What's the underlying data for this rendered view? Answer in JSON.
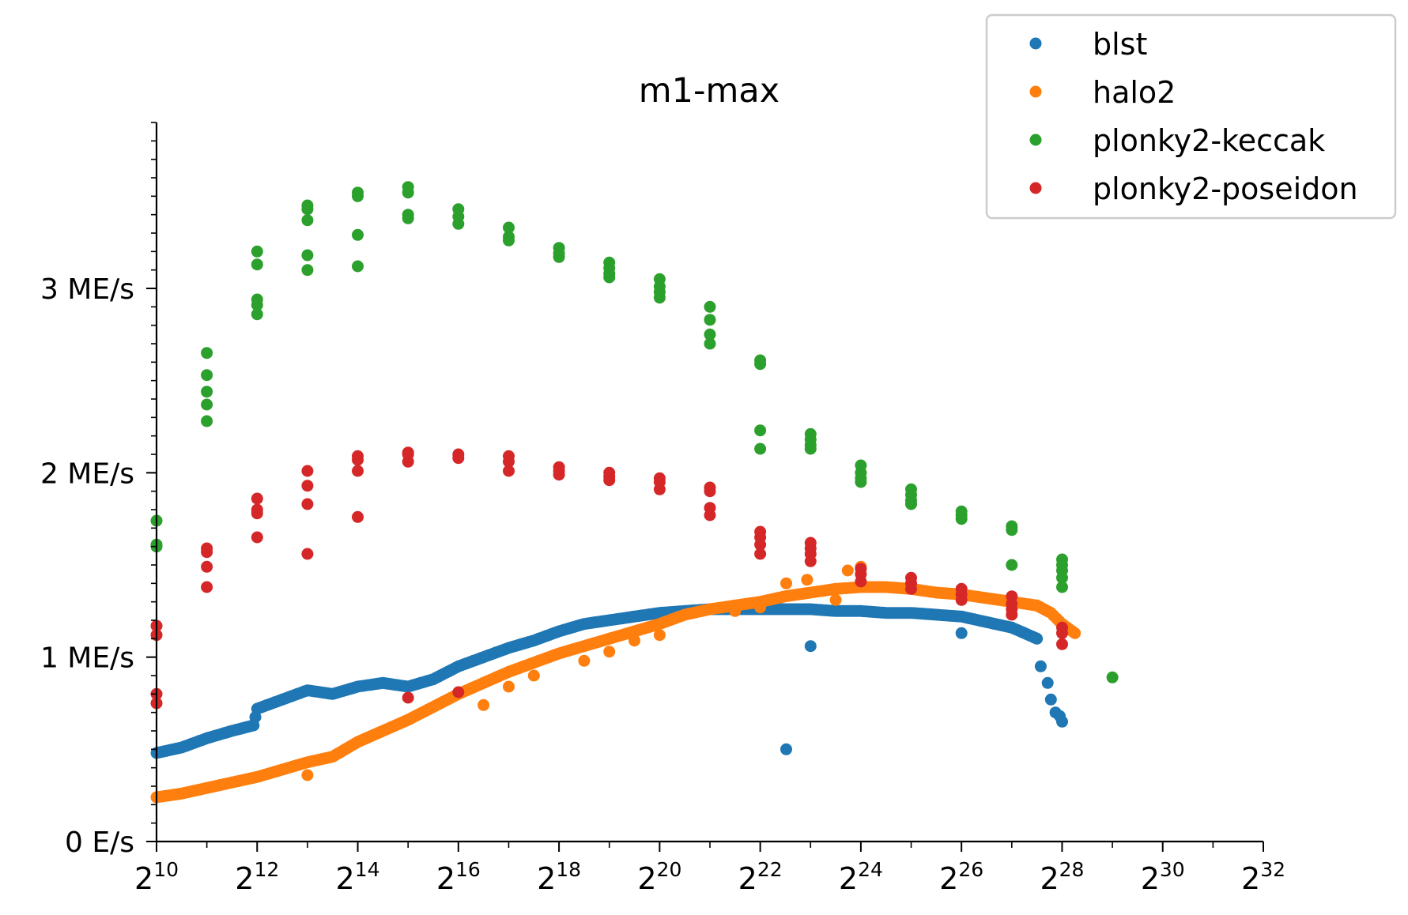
{
  "chart_data": {
    "type": "scatter",
    "title": "m1-max",
    "xlabel": "",
    "ylabel": "",
    "x_scale": "log2",
    "xlim": [
      1024,
      4294967296
    ],
    "ylim": [
      0,
      3900000
    ],
    "x_ticks": [
      {
        "value": 1024,
        "base": "2",
        "exp": "10"
      },
      {
        "value": 4096,
        "base": "2",
        "exp": "12"
      },
      {
        "value": 16384,
        "base": "2",
        "exp": "14"
      },
      {
        "value": 65536,
        "base": "2",
        "exp": "16"
      },
      {
        "value": 262144,
        "base": "2",
        "exp": "18"
      },
      {
        "value": 1048576,
        "base": "2",
        "exp": "20"
      },
      {
        "value": 4194304,
        "base": "2",
        "exp": "22"
      },
      {
        "value": 16777216,
        "base": "2",
        "exp": "24"
      },
      {
        "value": 67108864,
        "base": "2",
        "exp": "26"
      },
      {
        "value": 268435456,
        "base": "2",
        "exp": "28"
      },
      {
        "value": 1073741824,
        "base": "2",
        "exp": "30"
      },
      {
        "value": 4294967296,
        "base": "2",
        "exp": "32"
      }
    ],
    "y_ticks": [
      {
        "value": 0,
        "label": "0 E/s"
      },
      {
        "value": 1000000,
        "label": "1 ME/s"
      },
      {
        "value": 2000000,
        "label": "2 ME/s"
      },
      {
        "value": 3000000,
        "label": "3 ME/s"
      }
    ],
    "grid": false,
    "legend_position": "top-right",
    "series": [
      {
        "name": "blst",
        "color": "#1f77b4",
        "curve": [
          [
            1024,
            480000
          ],
          [
            1448,
            510000
          ],
          [
            2048,
            560000
          ],
          [
            2896,
            600000
          ],
          [
            3900,
            630000
          ],
          [
            4096,
            720000
          ],
          [
            5793,
            770000
          ],
          [
            8192,
            820000
          ],
          [
            11585,
            800000
          ],
          [
            16384,
            840000
          ],
          [
            23170,
            860000
          ],
          [
            32768,
            840000
          ],
          [
            46341,
            880000
          ],
          [
            65536,
            950000
          ],
          [
            92682,
            1000000
          ],
          [
            131072,
            1050000
          ],
          [
            185364,
            1090000
          ],
          [
            262144,
            1140000
          ],
          [
            370728,
            1180000
          ],
          [
            524288,
            1200000
          ],
          [
            741455,
            1220000
          ],
          [
            1048576,
            1240000
          ],
          [
            1482910,
            1250000
          ],
          [
            2097152,
            1260000
          ],
          [
            2965821,
            1260000
          ],
          [
            4194304,
            1260000
          ],
          [
            5931642,
            1260000
          ],
          [
            8388608,
            1260000
          ],
          [
            11863283,
            1250000
          ],
          [
            16777216,
            1250000
          ],
          [
            23726566,
            1240000
          ],
          [
            33554432,
            1240000
          ],
          [
            47453133,
            1230000
          ],
          [
            67108864,
            1220000
          ],
          [
            94906266,
            1190000
          ],
          [
            134217728,
            1160000
          ],
          [
            160000000,
            1130000
          ],
          [
            189812531,
            1100000
          ]
        ],
        "points": [
          [
            6000000,
            500000
          ],
          [
            8388608,
            1060000
          ],
          [
            67108864,
            1130000
          ],
          [
            200000000,
            950000
          ],
          [
            220000000,
            860000
          ],
          [
            230000000,
            770000
          ],
          [
            245000000,
            700000
          ],
          [
            260000000,
            680000
          ],
          [
            268435456,
            650000
          ]
        ]
      },
      {
        "name": "halo2",
        "color": "#ff7f0e",
        "curve": [
          [
            1024,
            240000
          ],
          [
            1448,
            260000
          ],
          [
            2048,
            290000
          ],
          [
            2896,
            320000
          ],
          [
            4096,
            350000
          ],
          [
            5793,
            390000
          ],
          [
            8192,
            430000
          ],
          [
            11585,
            460000
          ],
          [
            16384,
            540000
          ],
          [
            23170,
            600000
          ],
          [
            32768,
            660000
          ],
          [
            46341,
            730000
          ],
          [
            65536,
            800000
          ],
          [
            92682,
            860000
          ],
          [
            131072,
            920000
          ],
          [
            185364,
            970000
          ],
          [
            262144,
            1020000
          ],
          [
            370728,
            1060000
          ],
          [
            524288,
            1100000
          ],
          [
            741455,
            1140000
          ],
          [
            1048576,
            1180000
          ],
          [
            1482910,
            1230000
          ],
          [
            2097152,
            1260000
          ],
          [
            2965821,
            1280000
          ],
          [
            4194304,
            1300000
          ],
          [
            5931642,
            1330000
          ],
          [
            8388608,
            1350000
          ],
          [
            11863283,
            1370000
          ],
          [
            16777216,
            1380000
          ],
          [
            23726566,
            1380000
          ],
          [
            33554432,
            1370000
          ],
          [
            47453133,
            1350000
          ],
          [
            67108864,
            1340000
          ],
          [
            94906266,
            1320000
          ],
          [
            134217728,
            1300000
          ],
          [
            189812531,
            1280000
          ],
          [
            230000000,
            1240000
          ],
          [
            268435456,
            1180000
          ],
          [
            320000000,
            1130000
          ]
        ],
        "points": [
          [
            8192,
            360000
          ],
          [
            6000000,
            1400000
          ],
          [
            8000000,
            1420000
          ],
          [
            14000000,
            1470000
          ],
          [
            16777216,
            1490000
          ],
          [
            92682,
            740000
          ],
          [
            131072,
            840000
          ],
          [
            185364,
            900000
          ],
          [
            370728,
            980000
          ],
          [
            524288,
            1030000
          ],
          [
            741455,
            1090000
          ],
          [
            1048576,
            1120000
          ],
          [
            2965821,
            1250000
          ],
          [
            4194304,
            1270000
          ],
          [
            11863283,
            1310000
          ]
        ]
      },
      {
        "name": "plonky2-keccak",
        "color": "#2ca02c",
        "points": [
          [
            1024,
            1740000
          ],
          [
            1024,
            1610000
          ],
          [
            1024,
            1600000
          ],
          [
            2048,
            2650000
          ],
          [
            2048,
            2530000
          ],
          [
            2048,
            2440000
          ],
          [
            2048,
            2370000
          ],
          [
            2048,
            2280000
          ],
          [
            4096,
            3200000
          ],
          [
            4096,
            3130000
          ],
          [
            4096,
            2940000
          ],
          [
            4096,
            2910000
          ],
          [
            4096,
            2860000
          ],
          [
            8192,
            3450000
          ],
          [
            8192,
            3430000
          ],
          [
            8192,
            3370000
          ],
          [
            8192,
            3180000
          ],
          [
            8192,
            3100000
          ],
          [
            16384,
            3520000
          ],
          [
            16384,
            3500000
          ],
          [
            16384,
            3290000
          ],
          [
            16384,
            3120000
          ],
          [
            32768,
            3550000
          ],
          [
            32768,
            3520000
          ],
          [
            32768,
            3400000
          ],
          [
            32768,
            3380000
          ],
          [
            65536,
            3430000
          ],
          [
            65536,
            3390000
          ],
          [
            65536,
            3350000
          ],
          [
            131072,
            3330000
          ],
          [
            131072,
            3280000
          ],
          [
            131072,
            3260000
          ],
          [
            262144,
            3220000
          ],
          [
            262144,
            3190000
          ],
          [
            262144,
            3170000
          ],
          [
            524288,
            3140000
          ],
          [
            524288,
            3110000
          ],
          [
            524288,
            3080000
          ],
          [
            524288,
            3060000
          ],
          [
            1048576,
            3050000
          ],
          [
            1048576,
            3010000
          ],
          [
            1048576,
            2980000
          ],
          [
            1048576,
            2950000
          ],
          [
            2097152,
            2900000
          ],
          [
            2097152,
            2830000
          ],
          [
            2097152,
            2750000
          ],
          [
            2097152,
            2700000
          ],
          [
            4194304,
            2610000
          ],
          [
            4194304,
            2590000
          ],
          [
            4194304,
            2230000
          ],
          [
            4194304,
            2130000
          ],
          [
            8388608,
            2210000
          ],
          [
            8388608,
            2180000
          ],
          [
            8388608,
            2150000
          ],
          [
            8388608,
            2130000
          ],
          [
            16777216,
            2040000
          ],
          [
            16777216,
            2000000
          ],
          [
            16777216,
            1970000
          ],
          [
            16777216,
            1950000
          ],
          [
            33554432,
            1910000
          ],
          [
            33554432,
            1880000
          ],
          [
            33554432,
            1850000
          ],
          [
            33554432,
            1830000
          ],
          [
            67108864,
            1790000
          ],
          [
            67108864,
            1770000
          ],
          [
            67108864,
            1750000
          ],
          [
            134217728,
            1710000
          ],
          [
            134217728,
            1690000
          ],
          [
            134217728,
            1500000
          ],
          [
            268435456,
            1530000
          ],
          [
            268435456,
            1500000
          ],
          [
            268435456,
            1470000
          ],
          [
            268435456,
            1430000
          ],
          [
            268435456,
            1380000
          ],
          [
            536870912,
            890000
          ]
        ]
      },
      {
        "name": "plonky2-poseidon",
        "color": "#d62728",
        "points": [
          [
            1024,
            1170000
          ],
          [
            1024,
            1120000
          ],
          [
            1024,
            800000
          ],
          [
            1024,
            750000
          ],
          [
            2048,
            1590000
          ],
          [
            2048,
            1570000
          ],
          [
            2048,
            1490000
          ],
          [
            2048,
            1380000
          ],
          [
            4096,
            1860000
          ],
          [
            4096,
            1800000
          ],
          [
            4096,
            1780000
          ],
          [
            4096,
            1650000
          ],
          [
            8192,
            2010000
          ],
          [
            8192,
            1930000
          ],
          [
            8192,
            1830000
          ],
          [
            8192,
            1560000
          ],
          [
            16384,
            2090000
          ],
          [
            16384,
            2070000
          ],
          [
            16384,
            2010000
          ],
          [
            16384,
            1760000
          ],
          [
            32768,
            2110000
          ],
          [
            32768,
            2100000
          ],
          [
            32768,
            2060000
          ],
          [
            32768,
            780000
          ],
          [
            65536,
            2100000
          ],
          [
            65536,
            2080000
          ],
          [
            65536,
            810000
          ],
          [
            131072,
            2090000
          ],
          [
            131072,
            2060000
          ],
          [
            131072,
            2010000
          ],
          [
            262144,
            2030000
          ],
          [
            262144,
            2010000
          ],
          [
            262144,
            1990000
          ],
          [
            524288,
            2000000
          ],
          [
            524288,
            1980000
          ],
          [
            524288,
            1960000
          ],
          [
            1048576,
            1970000
          ],
          [
            1048576,
            1950000
          ],
          [
            1048576,
            1910000
          ],
          [
            2097152,
            1920000
          ],
          [
            2097152,
            1900000
          ],
          [
            2097152,
            1810000
          ],
          [
            2097152,
            1770000
          ],
          [
            4194304,
            1680000
          ],
          [
            4194304,
            1650000
          ],
          [
            4194304,
            1610000
          ],
          [
            4194304,
            1560000
          ],
          [
            8388608,
            1620000
          ],
          [
            8388608,
            1590000
          ],
          [
            8388608,
            1560000
          ],
          [
            8388608,
            1520000
          ],
          [
            16777216,
            1480000
          ],
          [
            16777216,
            1450000
          ],
          [
            16777216,
            1410000
          ],
          [
            33554432,
            1430000
          ],
          [
            33554432,
            1400000
          ],
          [
            33554432,
            1370000
          ],
          [
            67108864,
            1370000
          ],
          [
            67108864,
            1340000
          ],
          [
            67108864,
            1310000
          ],
          [
            134217728,
            1330000
          ],
          [
            134217728,
            1290000
          ],
          [
            134217728,
            1260000
          ],
          [
            134217728,
            1230000
          ],
          [
            268435456,
            1160000
          ],
          [
            268435456,
            1130000
          ],
          [
            268435456,
            1070000
          ]
        ]
      }
    ]
  }
}
